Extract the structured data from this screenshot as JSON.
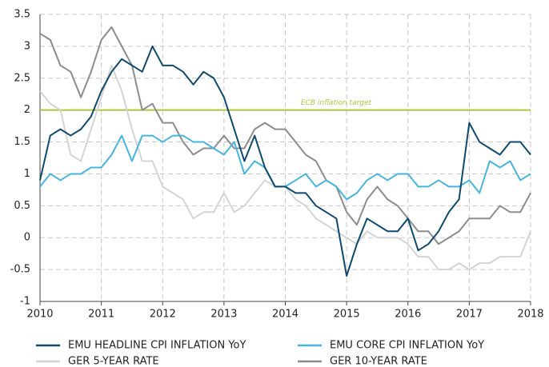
{
  "chart_data": {
    "type": "line",
    "x": [
      2010,
      2010.167,
      2010.333,
      2010.5,
      2010.667,
      2010.833,
      2011,
      2011.167,
      2011.333,
      2011.5,
      2011.667,
      2011.833,
      2012,
      2012.167,
      2012.333,
      2012.5,
      2012.667,
      2012.833,
      2013,
      2013.167,
      2013.333,
      2013.5,
      2013.667,
      2013.833,
      2014,
      2014.167,
      2014.333,
      2014.5,
      2014.667,
      2014.833,
      2015,
      2015.167,
      2015.333,
      2015.5,
      2015.667,
      2015.833,
      2016,
      2016.167,
      2016.333,
      2016.5,
      2016.667,
      2016.833,
      2017,
      2017.167,
      2017.333,
      2017.5,
      2017.667,
      2017.833,
      2018
    ],
    "series": [
      {
        "name": "EMU HEADLINE CPI INFLATION YoY",
        "color": "#0e4a6e",
        "values": [
          0.9,
          1.6,
          1.7,
          1.6,
          1.7,
          1.9,
          2.3,
          2.6,
          2.8,
          2.7,
          2.6,
          3.0,
          2.7,
          2.7,
          2.6,
          2.4,
          2.6,
          2.5,
          2.2,
          1.7,
          1.2,
          1.6,
          1.1,
          0.8,
          0.8,
          0.7,
          0.7,
          0.5,
          0.4,
          0.3,
          -0.6,
          -0.1,
          0.3,
          0.2,
          0.1,
          0.1,
          0.3,
          -0.2,
          -0.1,
          0.1,
          0.4,
          0.6,
          1.8,
          1.5,
          1.4,
          1.3,
          1.5,
          1.5,
          1.3
        ]
      },
      {
        "name": "EMU CORE CPI INFLATION YoY",
        "color": "#45b5e0",
        "values": [
          0.8,
          1.0,
          0.9,
          1.0,
          1.0,
          1.1,
          1.1,
          1.3,
          1.6,
          1.2,
          1.6,
          1.6,
          1.5,
          1.6,
          1.6,
          1.5,
          1.5,
          1.4,
          1.3,
          1.5,
          1.0,
          1.2,
          1.1,
          0.8,
          0.8,
          0.9,
          1.0,
          0.8,
          0.9,
          0.8,
          0.6,
          0.7,
          0.9,
          1.0,
          0.9,
          1.0,
          1.0,
          0.8,
          0.8,
          0.9,
          0.8,
          0.8,
          0.9,
          0.7,
          1.2,
          1.1,
          1.2,
          0.9,
          1.0
        ]
      },
      {
        "name": "GER 5-YEAR RATE",
        "color": "#d4d4d4",
        "values": [
          2.3,
          2.1,
          2.0,
          1.3,
          1.2,
          1.7,
          2.2,
          2.7,
          2.3,
          1.7,
          1.2,
          1.2,
          0.8,
          0.7,
          0.6,
          0.3,
          0.4,
          0.4,
          0.7,
          0.4,
          0.5,
          0.7,
          0.9,
          0.8,
          0.8,
          0.6,
          0.5,
          0.3,
          0.2,
          0.1,
          0.0,
          -0.1,
          0.1,
          0.0,
          0.0,
          0.0,
          -0.1,
          -0.3,
          -0.3,
          -0.5,
          -0.5,
          -0.4,
          -0.5,
          -0.4,
          -0.4,
          -0.3,
          -0.3,
          -0.3,
          0.1
        ]
      },
      {
        "name": "GER 10-YEAR RATE",
        "color": "#8c8c8c",
        "values": [
          3.2,
          3.1,
          2.7,
          2.6,
          2.2,
          2.6,
          3.1,
          3.3,
          3.0,
          2.7,
          2.0,
          2.1,
          1.8,
          1.8,
          1.5,
          1.3,
          1.4,
          1.4,
          1.6,
          1.4,
          1.4,
          1.7,
          1.8,
          1.7,
          1.7,
          1.5,
          1.3,
          1.2,
          0.9,
          0.8,
          0.4,
          0.2,
          0.6,
          0.8,
          0.6,
          0.5,
          0.3,
          0.1,
          0.1,
          -0.1,
          0.0,
          0.1,
          0.3,
          0.3,
          0.3,
          0.5,
          0.4,
          0.4,
          0.7
        ]
      }
    ],
    "target": {
      "value": 2,
      "label": "ECB inflation target",
      "color": "#a9c83e"
    },
    "xlim": [
      2010,
      2018
    ],
    "xticks": [
      2010,
      2011,
      2012,
      2013,
      2014,
      2015,
      2016,
      2017,
      2018
    ],
    "ylim": [
      -1,
      3.5
    ],
    "yticks": [
      3.5,
      3,
      2.5,
      2,
      1.5,
      1,
      0.5,
      0,
      -0.5,
      -1
    ],
    "grid": true
  }
}
